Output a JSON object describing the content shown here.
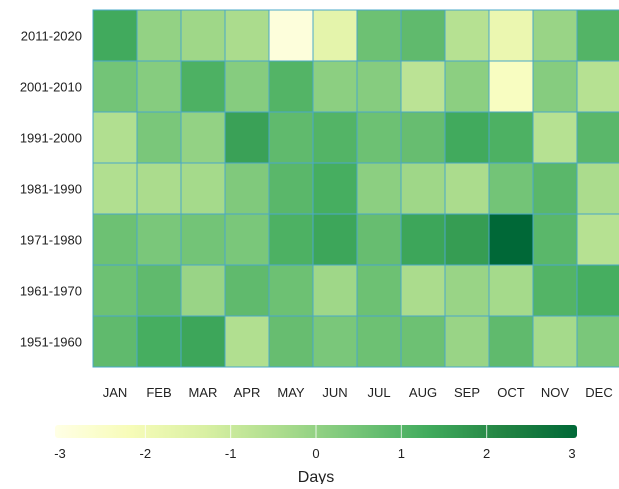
{
  "chart_data": {
    "type": "heatmap",
    "title": "",
    "xlabel": "",
    "ylabel": "",
    "x_categories": [
      "JAN",
      "FEB",
      "MAR",
      "APR",
      "MAY",
      "JUN",
      "JUL",
      "AUG",
      "SEP",
      "OCT",
      "NOV",
      "DEC"
    ],
    "y_categories": [
      "2011-2020",
      "2001-2010",
      "1991-2000",
      "1981-1990",
      "1971-1980",
      "1961-1970",
      "1951-1960"
    ],
    "values": [
      [
        1.3,
        0.0,
        -0.2,
        -0.4,
        -2.8,
        -1.6,
        0.6,
        0.8,
        -0.6,
        -1.8,
        -0.1,
        1.0
      ],
      [
        0.5,
        0.2,
        1.1,
        0.2,
        1.0,
        0.1,
        0.2,
        -0.7,
        0.1,
        -2.3,
        0.2,
        -0.6
      ],
      [
        -0.5,
        0.4,
        0.0,
        1.5,
        0.8,
        1.0,
        0.6,
        0.7,
        1.3,
        1.1,
        -0.6,
        0.9
      ],
      [
        -0.5,
        -0.4,
        -0.3,
        0.3,
        0.9,
        1.2,
        0.1,
        -0.2,
        -0.4,
        0.5,
        0.9,
        -0.4
      ],
      [
        0.6,
        0.4,
        0.5,
        0.4,
        1.1,
        1.4,
        0.7,
        1.4,
        1.6,
        3.0,
        0.9,
        -0.6
      ],
      [
        0.6,
        0.8,
        -0.1,
        0.8,
        0.6,
        -0.2,
        0.6,
        -0.4,
        -0.1,
        -0.3,
        1.0,
        1.2
      ],
      [
        0.8,
        1.2,
        1.4,
        -0.5,
        0.7,
        0.4,
        0.6,
        0.6,
        -0.1,
        0.8,
        -0.3,
        0.4
      ]
    ],
    "color_scale": {
      "min": -3,
      "max": 3,
      "ticks": [
        -3,
        -2,
        -1,
        0,
        1,
        2,
        3
      ],
      "tick_labels": [
        "-3",
        "-2",
        "-1",
        "0",
        "1",
        "2",
        "3"
      ],
      "label": "Days",
      "colors": [
        "#ffffe5",
        "#f7fcb9",
        "#d9f0a3",
        "#addd8e",
        "#78c679",
        "#41ab5d",
        "#238443",
        "#006837"
      ]
    },
    "cell_border_color": "#4aa8c8",
    "legend_position": "bottom"
  }
}
